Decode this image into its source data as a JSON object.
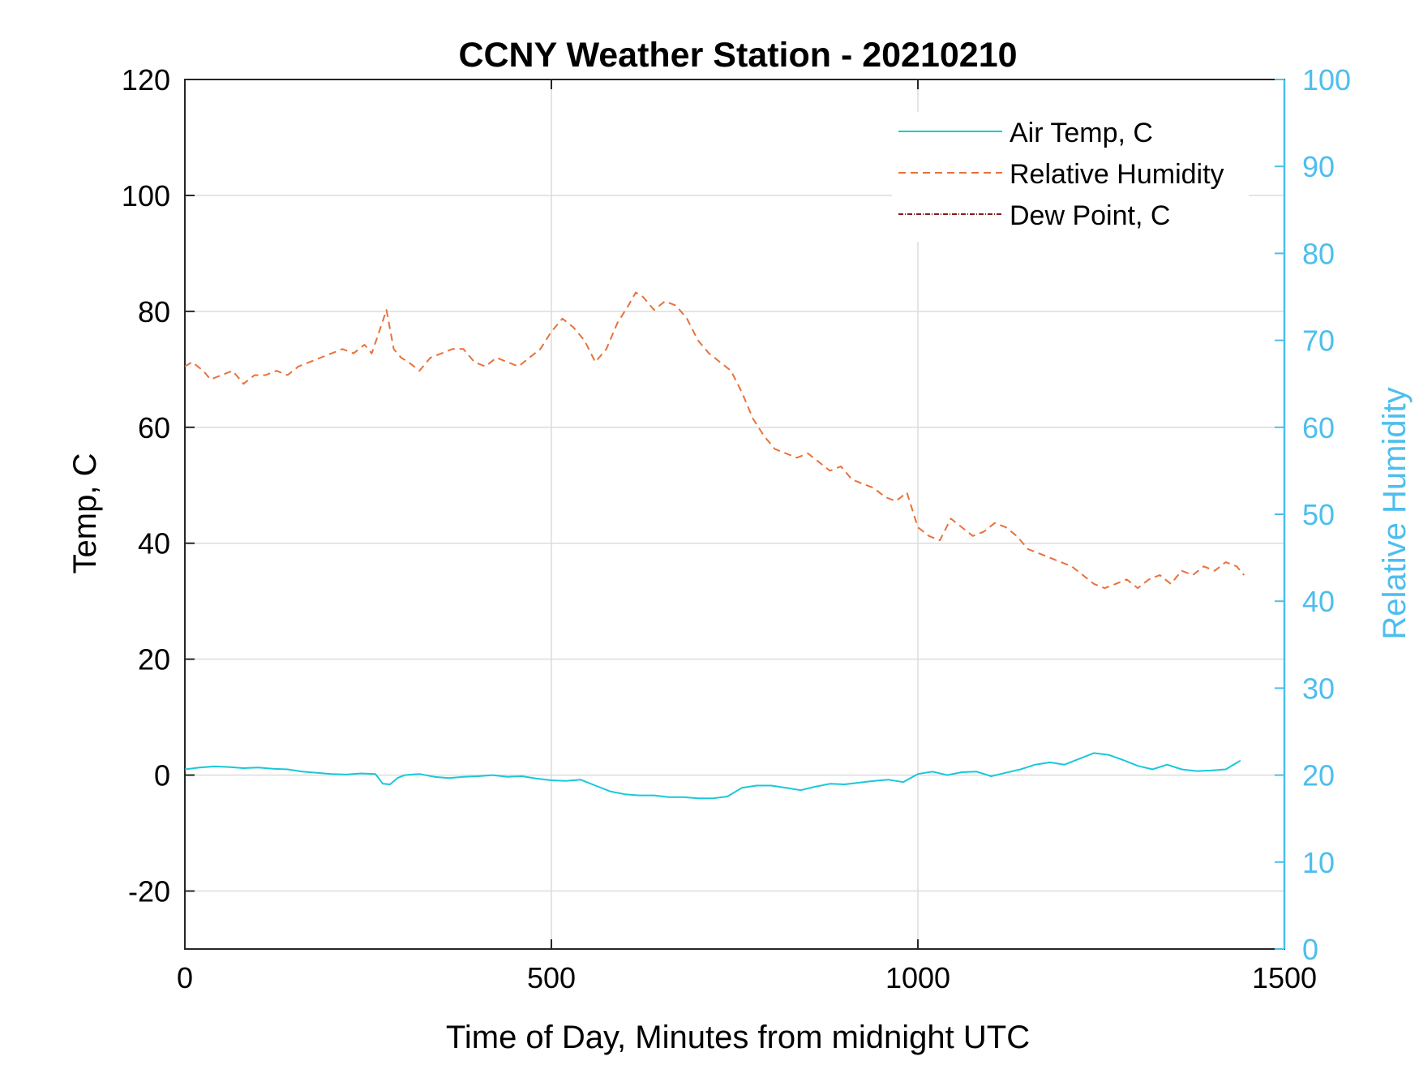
{
  "chart_data": {
    "type": "line",
    "title": "CCNY Weather Station - 20210210",
    "xlabel": "Time of Day, Minutes from midnight UTC",
    "ylabel_left": "Temp, C",
    "ylabel_right": "Relative Humidity",
    "xlim": [
      0,
      1500
    ],
    "ylim_left": [
      -30,
      120
    ],
    "ylim_right": [
      0,
      100
    ],
    "x_ticks": [
      0,
      500,
      1000,
      1500
    ],
    "y_left_ticks": [
      -20,
      0,
      20,
      40,
      60,
      80,
      100,
      120
    ],
    "y_right_ticks": [
      0,
      10,
      20,
      30,
      40,
      50,
      60,
      70,
      80,
      90,
      100
    ],
    "grid": true,
    "legend_position": "top-right",
    "colors": {
      "air_temp": "#1AC8D8",
      "relative_humidity": "#E8713A",
      "dew_point": "#8B1A1A",
      "right_axis": "#4DBEEE"
    },
    "series": [
      {
        "name": "Air Temp, C",
        "axis": "left",
        "style": "solid",
        "x": [
          0,
          20,
          40,
          60,
          80,
          100,
          120,
          140,
          160,
          180,
          200,
          220,
          240,
          260,
          270,
          280,
          290,
          300,
          320,
          340,
          360,
          380,
          400,
          420,
          440,
          460,
          480,
          500,
          520,
          540,
          560,
          580,
          600,
          620,
          640,
          660,
          680,
          700,
          720,
          740,
          760,
          780,
          800,
          820,
          840,
          860,
          880,
          900,
          920,
          940,
          960,
          980,
          1000,
          1020,
          1040,
          1060,
          1080,
          1100,
          1120,
          1140,
          1160,
          1180,
          1200,
          1220,
          1240,
          1260,
          1280,
          1300,
          1320,
          1340,
          1360,
          1380,
          1400,
          1420,
          1440
        ],
        "values": [
          1.0,
          1.3,
          1.5,
          1.4,
          1.2,
          1.3,
          1.1,
          1.0,
          0.6,
          0.4,
          0.2,
          0.1,
          0.3,
          0.2,
          -1.5,
          -1.6,
          -0.5,
          0.0,
          0.2,
          -0.3,
          -0.5,
          -0.3,
          -0.2,
          0.0,
          -0.3,
          -0.2,
          -0.6,
          -0.9,
          -1.0,
          -0.8,
          -1.8,
          -2.8,
          -3.3,
          -3.5,
          -3.5,
          -3.8,
          -3.8,
          -4.0,
          -4.0,
          -3.7,
          -2.2,
          -1.8,
          -1.8,
          -2.2,
          -2.6,
          -2.0,
          -1.5,
          -1.6,
          -1.3,
          -1.0,
          -0.8,
          -1.2,
          0.2,
          0.6,
          0.0,
          0.5,
          0.6,
          -0.2,
          0.4,
          1.0,
          1.8,
          2.2,
          1.8,
          2.8,
          3.8,
          3.5,
          2.6,
          1.6,
          1.0,
          1.8,
          1.0,
          0.7,
          0.8,
          1.0,
          2.5
        ]
      },
      {
        "name": "Relative Humidity",
        "axis": "right",
        "style": "dashed",
        "x": [
          0,
          10,
          25,
          35,
          50,
          65,
          80,
          95,
          110,
          125,
          140,
          155,
          170,
          185,
          200,
          215,
          230,
          245,
          255,
          265,
          275,
          285,
          295,
          305,
          320,
          335,
          350,
          365,
          380,
          395,
          410,
          425,
          440,
          455,
          470,
          485,
          500,
          515,
          530,
          545,
          560,
          575,
          590,
          605,
          615,
          625,
          640,
          655,
          670,
          685,
          700,
          715,
          730,
          745,
          760,
          775,
          790,
          805,
          820,
          835,
          850,
          865,
          880,
          895,
          910,
          925,
          940,
          955,
          970,
          985,
          1000,
          1015,
          1030,
          1045,
          1060,
          1075,
          1090,
          1105,
          1120,
          1135,
          1150,
          1165,
          1180,
          1195,
          1210,
          1225,
          1240,
          1255,
          1270,
          1285,
          1300,
          1315,
          1330,
          1345,
          1360,
          1375,
          1390,
          1405,
          1420,
          1435,
          1445
        ],
        "values": [
          67.0,
          67.5,
          66.5,
          65.5,
          66.0,
          66.5,
          65.0,
          66.0,
          66.0,
          66.5,
          66.0,
          67.0,
          67.5,
          68.0,
          68.5,
          69.0,
          68.5,
          69.5,
          68.5,
          71.0,
          73.5,
          69.0,
          68.0,
          67.5,
          66.5,
          68.0,
          68.5,
          69.0,
          69.0,
          67.5,
          67.0,
          68.0,
          67.5,
          67.0,
          68.0,
          69.0,
          71.0,
          72.5,
          71.5,
          70.0,
          67.5,
          69.0,
          72.0,
          74.0,
          75.5,
          75.0,
          73.5,
          74.5,
          74.0,
          72.5,
          70.0,
          68.5,
          67.5,
          66.5,
          64.0,
          61.0,
          59.0,
          57.5,
          57.0,
          56.5,
          57.0,
          56.0,
          55.0,
          55.5,
          54.0,
          53.5,
          53.0,
          52.0,
          51.5,
          52.5,
          48.5,
          47.5,
          47.0,
          49.5,
          48.5,
          47.5,
          48.0,
          49.0,
          48.5,
          47.5,
          46.0,
          45.5,
          45.0,
          44.5,
          44.0,
          43.0,
          42.0,
          41.5,
          42.0,
          42.5,
          41.5,
          42.5,
          43.0,
          42.0,
          43.5,
          43.0,
          44.0,
          43.5,
          44.5,
          44.0,
          43.0
        ]
      },
      {
        "name": "Dew Point, C",
        "axis": "left",
        "style": "dash-dot",
        "x": [],
        "values": []
      }
    ]
  }
}
